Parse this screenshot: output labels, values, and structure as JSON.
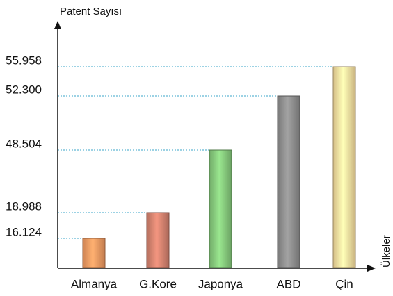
{
  "chart_data": {
    "type": "bar",
    "y_label": "Patent Sayısı",
    "x_label": "Ülkeler",
    "categories": [
      "Almanya",
      "G.Kore",
      "Japonya",
      "ABD",
      "Çin"
    ],
    "values": [
      16124,
      18988,
      48504,
      52300,
      55958
    ],
    "colors": [
      "#f29a62",
      "#d4826f",
      "#86c97c",
      "#8e8e8e",
      "#fbe0a0"
    ],
    "ylim": [
      0,
      55958
    ],
    "yticks": [
      {
        "value": 16124,
        "label": "16.124"
      },
      {
        "value": 18988,
        "label": "18.988"
      },
      {
        "value": 48504,
        "label": "48.504"
      },
      {
        "value": 52300,
        "label": "52.300"
      },
      {
        "value": 55958,
        "label": "55.958"
      }
    ]
  }
}
